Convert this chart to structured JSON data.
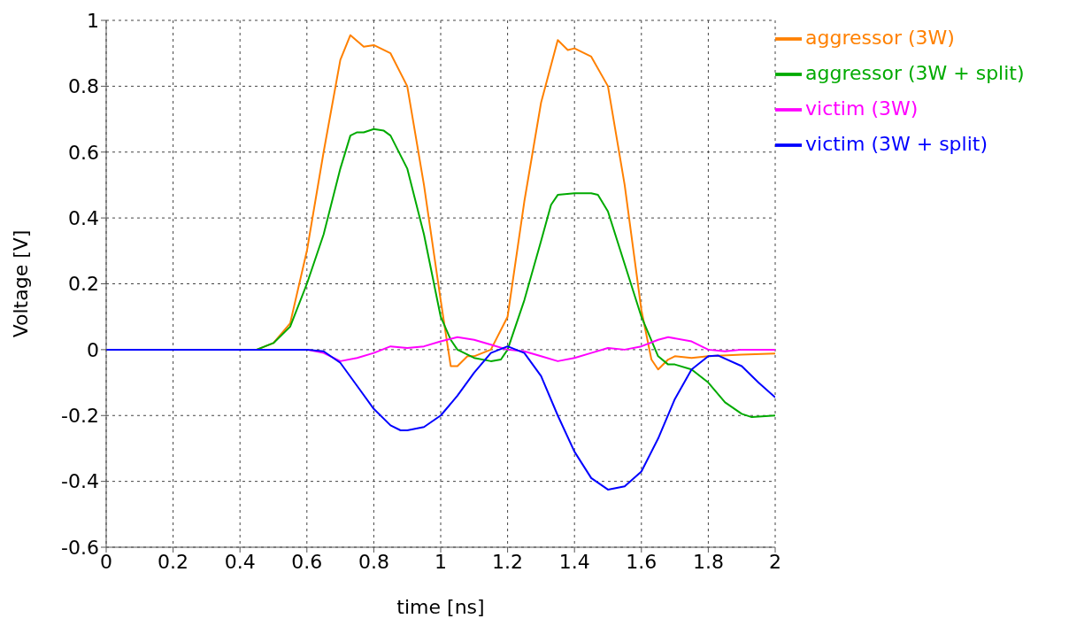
{
  "chart_data": {
    "type": "line",
    "xlabel": "time [ns]",
    "ylabel": "Voltage [V]",
    "xlim": [
      0,
      2
    ],
    "xticks": [
      0,
      0.2,
      0.4,
      0.6,
      0.8,
      1,
      1.2,
      1.4,
      1.6,
      1.8,
      2
    ],
    "ylim": [
      -0.6,
      1
    ],
    "yticks": [
      -0.6,
      -0.4,
      -0.2,
      0,
      0.2,
      0.4,
      0.6,
      0.8,
      1
    ],
    "grid": true,
    "legend": "top right",
    "marker": "none",
    "line_style": "solid",
    "series": [
      {
        "name": "aggressor (3W)",
        "color": "#ff8000",
        "x": [
          0,
          0.45,
          0.5,
          0.55,
          0.6,
          0.65,
          0.7,
          0.73,
          0.77,
          0.8,
          0.85,
          0.9,
          0.95,
          1.0,
          1.03,
          1.05,
          1.08,
          1.1,
          1.15,
          1.2,
          1.25,
          1.3,
          1.35,
          1.38,
          1.4,
          1.45,
          1.5,
          1.55,
          1.6,
          1.63,
          1.65,
          1.68,
          1.7,
          1.75,
          1.8,
          1.9,
          2.0
        ],
        "values": [
          0,
          0,
          0.02,
          0.08,
          0.3,
          0.6,
          0.88,
          0.955,
          0.92,
          0.925,
          0.9,
          0.8,
          0.5,
          0.15,
          -0.05,
          -0.05,
          -0.02,
          -0.02,
          0,
          0.1,
          0.45,
          0.75,
          0.94,
          0.91,
          0.915,
          0.89,
          0.8,
          0.5,
          0.12,
          -0.03,
          -0.06,
          -0.03,
          -0.02,
          -0.025,
          -0.02,
          -0.015,
          -0.012
        ]
      },
      {
        "name": "aggressor (3W + split)",
        "color": "#00aa00",
        "x": [
          0,
          0.45,
          0.5,
          0.55,
          0.6,
          0.65,
          0.7,
          0.73,
          0.75,
          0.77,
          0.8,
          0.83,
          0.85,
          0.9,
          0.95,
          1.0,
          1.03,
          1.05,
          1.1,
          1.15,
          1.18,
          1.2,
          1.25,
          1.3,
          1.33,
          1.35,
          1.4,
          1.45,
          1.47,
          1.5,
          1.55,
          1.6,
          1.65,
          1.68,
          1.7,
          1.75,
          1.8,
          1.85,
          1.9,
          1.93,
          2.0
        ],
        "values": [
          0,
          0,
          0.02,
          0.07,
          0.2,
          0.35,
          0.55,
          0.65,
          0.66,
          0.66,
          0.67,
          0.665,
          0.65,
          0.55,
          0.35,
          0.1,
          0.03,
          0,
          -0.025,
          -0.035,
          -0.03,
          0,
          0.15,
          0.33,
          0.44,
          0.47,
          0.475,
          0.475,
          0.47,
          0.42,
          0.26,
          0.1,
          -0.02,
          -0.045,
          -0.045,
          -0.06,
          -0.1,
          -0.16,
          -0.195,
          -0.205,
          -0.2
        ]
      },
      {
        "name": "victim (3W)",
        "color": "#ff00ff",
        "x": [
          0,
          0.6,
          0.65,
          0.7,
          0.75,
          0.8,
          0.85,
          0.9,
          0.95,
          1.0,
          1.05,
          1.1,
          1.15,
          1.2,
          1.25,
          1.3,
          1.35,
          1.4,
          1.45,
          1.5,
          1.55,
          1.6,
          1.65,
          1.68,
          1.75,
          1.8,
          1.85,
          1.9,
          2.0
        ],
        "values": [
          0,
          0,
          -0.01,
          -0.035,
          -0.025,
          -0.01,
          0.01,
          0.005,
          0.01,
          0.025,
          0.038,
          0.03,
          0.015,
          0,
          -0.005,
          -0.02,
          -0.035,
          -0.025,
          -0.01,
          0.005,
          0,
          0.01,
          0.03,
          0.038,
          0.025,
          0,
          -0.005,
          0,
          0
        ]
      },
      {
        "name": "victim (3W + split)",
        "color": "#0000ff",
        "x": [
          0,
          0.6,
          0.65,
          0.7,
          0.75,
          0.8,
          0.85,
          0.88,
          0.9,
          0.95,
          1.0,
          1.05,
          1.1,
          1.15,
          1.2,
          1.25,
          1.3,
          1.35,
          1.4,
          1.45,
          1.5,
          1.55,
          1.6,
          1.65,
          1.7,
          1.75,
          1.8,
          1.83,
          1.9,
          1.95,
          2.0
        ],
        "values": [
          0,
          0,
          -0.005,
          -0.04,
          -0.11,
          -0.18,
          -0.23,
          -0.245,
          -0.245,
          -0.235,
          -0.2,
          -0.14,
          -0.07,
          -0.01,
          0.01,
          -0.01,
          -0.08,
          -0.2,
          -0.31,
          -0.39,
          -0.425,
          -0.415,
          -0.37,
          -0.27,
          -0.15,
          -0.06,
          -0.02,
          -0.018,
          -0.05,
          -0.1,
          -0.145
        ]
      }
    ]
  }
}
